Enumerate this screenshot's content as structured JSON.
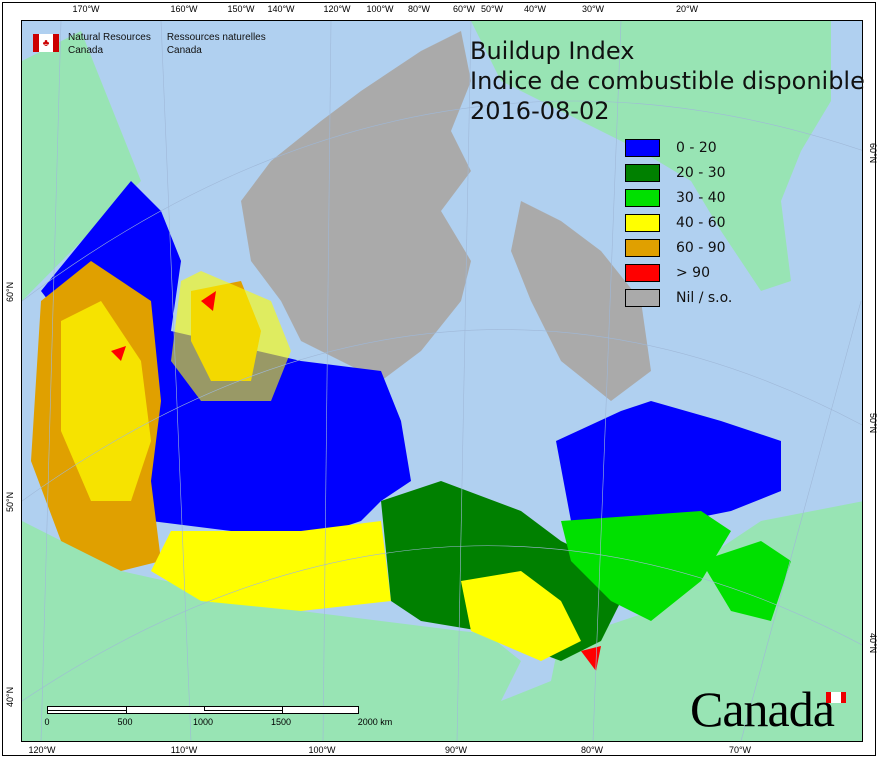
{
  "title": {
    "line1": "Buildup Index",
    "line2": "Indice de combustible disponible",
    "date": "2016-08-02"
  },
  "agency": {
    "en_line1": "Natural Resources",
    "en_line2": "Canada",
    "fr_line1": "Ressources naturelles",
    "fr_line2": "Canada"
  },
  "wordmark": "Canada",
  "legend": [
    {
      "label": "0 - 20",
      "color": "#0000ff"
    },
    {
      "label": "20 - 30",
      "color": "#008000"
    },
    {
      "label": "30 - 40",
      "color": "#00e000"
    },
    {
      "label": "40 - 60",
      "color": "#ffff00"
    },
    {
      "label": "60 - 90",
      "color": "#e0a000"
    },
    {
      "label": "> 90",
      "color": "#ff0000"
    },
    {
      "label": "Nil / s.o.",
      "color": "#aaaaaa"
    }
  ],
  "top_ticks": [
    "170°W",
    "160°W",
    "150°W",
    "140°W",
    "120°W",
    "100°W",
    "80°W",
    "60°W",
    "50°W",
    "40°W",
    "30°W",
    "20°W"
  ],
  "bottom_ticks": [
    "120°W",
    "110°W",
    "100°W",
    "90°W",
    "80°W",
    "70°W"
  ],
  "left_ticks": [
    "60°N",
    "50°N",
    "40°N"
  ],
  "right_ticks": [
    "60°N",
    "50°N",
    "40°N"
  ],
  "scale_bar": {
    "labels": [
      "0",
      "500",
      "1000",
      "1500",
      "2000 km"
    ]
  },
  "colors": {
    "ocean": "#b0d0f0",
    "land_outside": "#98e4b4",
    "nil": "#aaaaaa"
  }
}
